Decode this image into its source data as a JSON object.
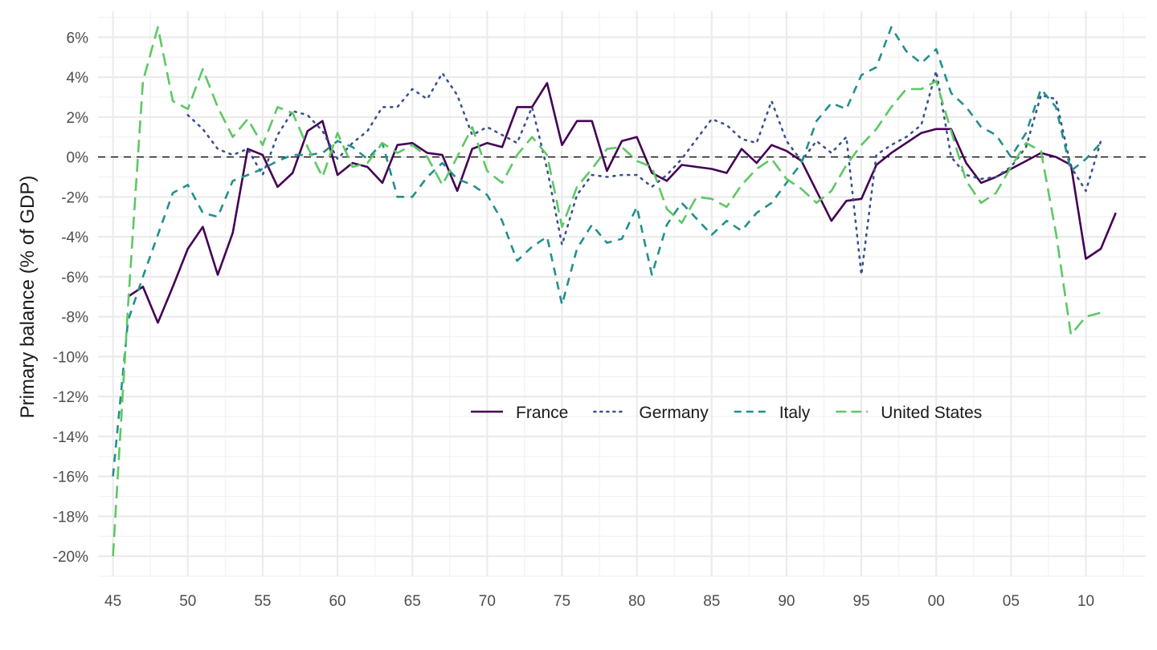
{
  "chart_data": {
    "type": "line",
    "title": "",
    "xlabel": "",
    "ylabel": "Primary balance (% of GDP)",
    "xlim": [
      1944,
      2014
    ],
    "ylim": [
      -21,
      7.3
    ],
    "x_ticks": [
      1945,
      1950,
      1955,
      1960,
      1965,
      1970,
      1975,
      1980,
      1985,
      1990,
      1995,
      2000,
      2005,
      2010
    ],
    "x_tick_labels": [
      "45",
      "50",
      "55",
      "60",
      "65",
      "70",
      "75",
      "80",
      "85",
      "90",
      "95",
      "00",
      "05",
      "10"
    ],
    "y_ticks": [
      6,
      4,
      2,
      0,
      -2,
      -4,
      -6,
      -8,
      -10,
      -12,
      -14,
      -16,
      -18,
      -20
    ],
    "y_tick_labels": [
      "6%",
      "4%",
      "2%",
      "0%",
      "-2%",
      "-4%",
      "-6%",
      "-8%",
      "-10%",
      "-12%",
      "-14%",
      "-16%",
      "-18%",
      "-20%"
    ],
    "grid": true,
    "reference_line": {
      "y": 0,
      "style": "dashed",
      "color": "#000000"
    },
    "legend": {
      "position": "bottom-center"
    },
    "series": [
      {
        "name": "France",
        "color": "#440154",
        "dash": "solid",
        "start_year": 1946,
        "values": [
          -7.0,
          -6.5,
          -8.3,
          -6.5,
          -4.6,
          -3.5,
          -5.9,
          -3.8,
          0.4,
          0.1,
          -1.5,
          -0.8,
          1.3,
          1.8,
          -0.9,
          -0.3,
          -0.5,
          -1.3,
          0.6,
          0.7,
          0.2,
          0.1,
          -1.7,
          0.4,
          0.7,
          0.5,
          2.5,
          2.5,
          3.7,
          0.6,
          1.8,
          1.8,
          -0.7,
          0.8,
          1.0,
          -0.8,
          -1.2,
          -0.4,
          -0.5,
          -0.6,
          -0.8,
          0.4,
          -0.3,
          0.6,
          0.3,
          -0.2,
          -1.7,
          -3.2,
          -2.2,
          -2.1,
          -0.4,
          0.2,
          0.7,
          1.2,
          1.4,
          1.4,
          -0.3,
          -1.3,
          -1.0,
          -0.6,
          -0.2,
          0.2,
          0.0,
          -0.4,
          -5.1,
          -4.6,
          -2.8
        ]
      },
      {
        "name": "Germany",
        "color": "#3b528b",
        "dash": "dotted",
        "start_year": 1950,
        "values": [
          2.1,
          1.4,
          0.4,
          0.1,
          0.4,
          -0.9,
          1.1,
          2.3,
          2.1,
          1.3,
          -0.1,
          0.7,
          1.3,
          2.5,
          2.5,
          3.4,
          2.9,
          4.2,
          3.1,
          1.1,
          1.5,
          1.1,
          0.7,
          2.5,
          -0.6,
          -4.4,
          -1.9,
          -0.9,
          -1.0,
          -0.9,
          -0.9,
          -1.5,
          -0.9,
          -0.1,
          0.9,
          1.9,
          1.6,
          0.9,
          0.7,
          2.8,
          0.8,
          -0.2,
          0.8,
          0.2,
          1.0,
          -5.9,
          0.1,
          0.6,
          1.0,
          1.6,
          4.3,
          0.0,
          -0.9,
          -1.1,
          -1.0,
          -0.5,
          0.5,
          3.1,
          2.9,
          -0.5,
          -1.7,
          0.8
        ]
      },
      {
        "name": "Italy",
        "color": "#21908c",
        "dash": "dashed",
        "start_year": 1945,
        "values": [
          -16.0,
          -8.2,
          -6.0,
          -3.9,
          -1.8,
          -1.4,
          -2.8,
          -3.0,
          -1.2,
          -0.9,
          -0.6,
          -0.2,
          0.1,
          0.1,
          0.2,
          0.8,
          0.5,
          -0.1,
          0.7,
          -2.0,
          -2.0,
          -1.0,
          -0.3,
          -1.1,
          -1.4,
          -1.9,
          -3.2,
          -5.2,
          -4.5,
          -4.0,
          -7.4,
          -4.6,
          -3.4,
          -4.3,
          -4.1,
          -2.5,
          -5.9,
          -3.4,
          -2.3,
          -3.1,
          -3.9,
          -3.2,
          -3.7,
          -2.8,
          -2.3,
          -1.3,
          -0.3,
          1.8,
          2.7,
          2.4,
          4.1,
          4.5,
          6.5,
          5.3,
          4.7,
          5.4,
          3.2,
          2.5,
          1.5,
          1.1,
          0.0,
          1.2,
          3.4,
          2.5,
          -0.7,
          -0.1,
          0.7
        ]
      },
      {
        "name": "United States",
        "color": "#5dc863",
        "dash": "longdash",
        "start_year": 1945,
        "values": [
          -20.0,
          -7.5,
          3.8,
          6.5,
          2.8,
          2.4,
          4.4,
          2.5,
          1.0,
          1.9,
          0.6,
          2.5,
          2.2,
          0.5,
          -1.0,
          1.2,
          -0.5,
          -0.3,
          0.7,
          0.2,
          0.6,
          0.0,
          -1.4,
          0.0,
          1.5,
          -0.7,
          -1.3,
          0.1,
          1.0,
          0.1,
          -3.5,
          -1.5,
          -0.6,
          0.4,
          0.5,
          -0.2,
          -0.5,
          -2.6,
          -3.3,
          -2.0,
          -2.1,
          -2.5,
          -1.4,
          -0.6,
          -0.1,
          -1.1,
          -1.6,
          -2.3,
          -1.7,
          -0.4,
          0.6,
          1.4,
          2.5,
          3.4,
          3.4,
          3.8,
          1.3,
          -1.2,
          -2.3,
          -1.8,
          -0.5,
          0.7,
          0.3,
          -3.8,
          -8.9,
          -8.0,
          -7.8
        ]
      }
    ]
  }
}
